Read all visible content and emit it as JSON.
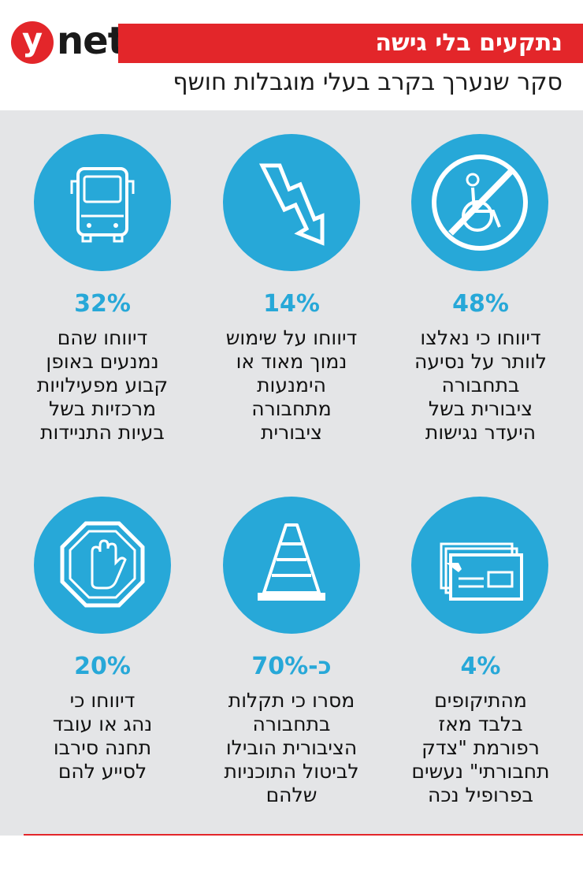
{
  "header": {
    "logo_letter": "y",
    "logo_text": "net",
    "title": "נתקעים בלי גישה",
    "subtitle": "סקר שנערך בקרב בעלי מוגבלות חושף"
  },
  "colors": {
    "accent_red": "#e3262a",
    "accent_blue": "#27a8d8",
    "panel_gray": "#e4e5e7"
  },
  "stats": [
    {
      "icon": "no-wheelchair-icon",
      "value": "48%",
      "text": [
        "דיווחו כי נאלצו",
        "לוותר על נסיעה",
        "בתחבורה",
        "ציבורית בשל",
        "היעדר נגישות"
      ]
    },
    {
      "icon": "lightning-down-arrow-icon",
      "value": "14%",
      "text": [
        "דיווחו על שימוש",
        "נמוך מאוד או",
        "הימנעות",
        "מתחבורה",
        "ציבורית"
      ]
    },
    {
      "icon": "bus-icon",
      "value": "32%",
      "text": [
        "דיווחו שהם",
        "נמנעים באופן",
        "קבוע מפעילויות",
        "מרכזיות בשל",
        "בעיות התניידות"
      ]
    },
    {
      "icon": "envelope-documents-icon",
      "value": "4%",
      "text": [
        "מהתיקופים",
        "בלבד מאז",
        "רפורמת \"צדק",
        "תחבורתי\" נעשים",
        "בפרופיל נכה"
      ]
    },
    {
      "icon": "traffic-cone-icon",
      "value": "כ-70%",
      "text": [
        "מסרו כי תקלות",
        "בתחבורה",
        "הציבורית הובילו",
        "לביטול התוכניות",
        "שלהם"
      ]
    },
    {
      "icon": "stop-hand-icon",
      "value": "20%",
      "text": [
        "דיווחו כי",
        "נהג או עובד",
        "תחנה סירבו",
        "לסייע להם"
      ]
    }
  ]
}
